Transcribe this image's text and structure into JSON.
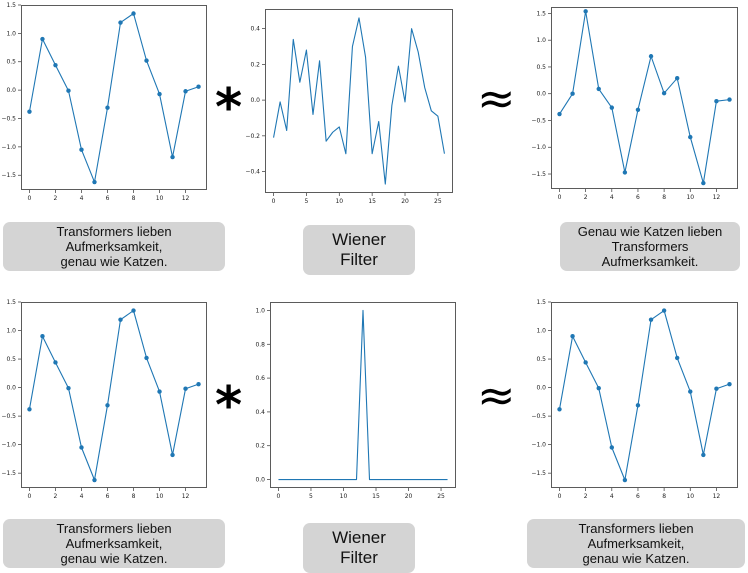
{
  "operators": {
    "convolve": "*",
    "approx": "≈"
  },
  "captions": {
    "row1": {
      "left": [
        "Transformers lieben Aufmerksamkeit,",
        "genau wie Katzen."
      ],
      "middle": [
        "Wiener Filter"
      ],
      "right": [
        "Genau wie Katzen lieben",
        "Transformers Aufmerksamkeit."
      ]
    },
    "row2": {
      "left": [
        "Transformers lieben Aufmerksamkeit,",
        "genau wie Katzen."
      ],
      "middle": [
        "Wiener Filter"
      ],
      "right": [
        "Transformers lieben Aufmerksamkeit,",
        "genau wie Katzen."
      ]
    }
  },
  "chart_data": [
    {
      "id": "r1-left",
      "type": "line",
      "markers": true,
      "color": "#1f77b4",
      "x": [
        0,
        1,
        2,
        3,
        4,
        5,
        6,
        7,
        8,
        9,
        10,
        11,
        12,
        13
      ],
      "y": [
        -0.38,
        0.9,
        0.44,
        -0.01,
        -1.05,
        -1.62,
        -0.31,
        1.19,
        1.35,
        0.52,
        -0.07,
        -1.18,
        -0.02,
        0.06
      ],
      "xlim": [
        -0.65,
        13.65
      ],
      "ylim": [
        -1.76,
        1.5
      ],
      "xticks": [
        0,
        2,
        4,
        6,
        8,
        10,
        12
      ],
      "yticks": [
        -1.5,
        -1.0,
        -0.5,
        0.0,
        0.5,
        1.0,
        1.5
      ],
      "ytick_labels": [
        "−1.5",
        "−1.0",
        "−0.5",
        "0.0",
        "0.5",
        "1.0",
        "1.5"
      ]
    },
    {
      "id": "r1-mid",
      "type": "line",
      "markers": false,
      "color": "#1f77b4",
      "x": [
        0,
        1,
        2,
        3,
        4,
        5,
        6,
        7,
        8,
        9,
        10,
        11,
        12,
        13,
        14,
        15,
        16,
        17,
        18,
        19,
        20,
        21,
        22,
        23,
        24,
        25,
        26
      ],
      "y": [
        -0.21,
        -0.01,
        -0.17,
        0.34,
        0.1,
        0.28,
        -0.08,
        0.22,
        -0.23,
        -0.18,
        -0.15,
        -0.3,
        0.3,
        0.46,
        0.24,
        -0.3,
        -0.12,
        -0.47,
        -0.03,
        0.19,
        -0.01,
        0.4,
        0.27,
        0.07,
        -0.06,
        -0.09,
        -0.3
      ],
      "xlim": [
        -1.3,
        27.3
      ],
      "ylim": [
        -0.52,
        0.51
      ],
      "xticks": [
        0,
        5,
        10,
        15,
        20,
        25
      ],
      "yticks": [
        -0.4,
        -0.2,
        0.0,
        0.2,
        0.4
      ],
      "ytick_labels": [
        "−0.4",
        "−0.2",
        "0.0",
        "0.2",
        "0.4"
      ]
    },
    {
      "id": "r1-right",
      "type": "line",
      "markers": true,
      "color": "#1f77b4",
      "x": [
        0,
        1,
        2,
        3,
        4,
        5,
        6,
        7,
        8,
        9,
        10,
        11,
        12,
        13
      ],
      "y": [
        -0.38,
        0.0,
        1.54,
        0.09,
        -0.26,
        -1.47,
        -0.3,
        0.7,
        0.01,
        0.29,
        -0.81,
        -1.67,
        -0.14,
        -0.11
      ],
      "xlim": [
        -0.65,
        13.65
      ],
      "ylim": [
        -1.78,
        1.62
      ],
      "xticks": [
        0,
        2,
        4,
        6,
        8,
        10,
        12
      ],
      "yticks": [
        -1.5,
        -1.0,
        -0.5,
        0.0,
        0.5,
        1.0,
        1.5
      ],
      "ytick_labels": [
        "−1.5",
        "−1.0",
        "−0.5",
        "0.0",
        "0.5",
        "1.0",
        "1.5"
      ]
    },
    {
      "id": "r2-left",
      "type": "line",
      "markers": true,
      "color": "#1f77b4",
      "x": [
        0,
        1,
        2,
        3,
        4,
        5,
        6,
        7,
        8,
        9,
        10,
        11,
        12,
        13
      ],
      "y": [
        -0.38,
        0.9,
        0.44,
        -0.01,
        -1.05,
        -1.62,
        -0.31,
        1.19,
        1.35,
        0.52,
        -0.07,
        -1.18,
        -0.02,
        0.06
      ],
      "xlim": [
        -0.65,
        13.65
      ],
      "ylim": [
        -1.76,
        1.5
      ],
      "xticks": [
        0,
        2,
        4,
        6,
        8,
        10,
        12
      ],
      "yticks": [
        -1.5,
        -1.0,
        -0.5,
        0.0,
        0.5,
        1.0,
        1.5
      ],
      "ytick_labels": [
        "−1.5",
        "−1.0",
        "−0.5",
        "0.0",
        "0.5",
        "1.0",
        "1.5"
      ]
    },
    {
      "id": "r2-mid",
      "type": "line",
      "markers": false,
      "color": "#1f77b4",
      "x": [
        0,
        1,
        2,
        3,
        4,
        5,
        6,
        7,
        8,
        9,
        10,
        11,
        12,
        13,
        14,
        15,
        16,
        17,
        18,
        19,
        20,
        21,
        22,
        23,
        24,
        25,
        26
      ],
      "y": [
        0,
        0,
        0,
        0,
        0,
        0,
        0,
        0,
        0,
        0,
        0,
        0,
        0,
        1.0,
        0,
        0,
        0,
        0,
        0,
        0,
        0,
        0,
        0,
        0,
        0,
        0,
        0
      ],
      "xlim": [
        -1.3,
        27.3
      ],
      "ylim": [
        -0.05,
        1.05
      ],
      "xticks": [
        0,
        5,
        10,
        15,
        20,
        25
      ],
      "yticks": [
        0.0,
        0.2,
        0.4,
        0.6,
        0.8,
        1.0
      ],
      "ytick_labels": [
        "0.0",
        "0.2",
        "0.4",
        "0.6",
        "0.8",
        "1.0"
      ]
    },
    {
      "id": "r2-right",
      "type": "line",
      "markers": true,
      "color": "#1f77b4",
      "x": [
        0,
        1,
        2,
        3,
        4,
        5,
        6,
        7,
        8,
        9,
        10,
        11,
        12,
        13
      ],
      "y": [
        -0.38,
        0.9,
        0.44,
        -0.01,
        -1.05,
        -1.62,
        -0.31,
        1.19,
        1.35,
        0.52,
        -0.07,
        -1.18,
        -0.02,
        0.06
      ],
      "xlim": [
        -0.65,
        13.65
      ],
      "ylim": [
        -1.76,
        1.5
      ],
      "xticks": [
        0,
        2,
        4,
        6,
        8,
        10,
        12
      ],
      "yticks": [
        -1.5,
        -1.0,
        -0.5,
        0.0,
        0.5,
        1.0,
        1.5
      ],
      "ytick_labels": [
        "−1.5",
        "−1.0",
        "−0.5",
        "0.0",
        "0.5",
        "1.0",
        "1.5"
      ]
    }
  ]
}
